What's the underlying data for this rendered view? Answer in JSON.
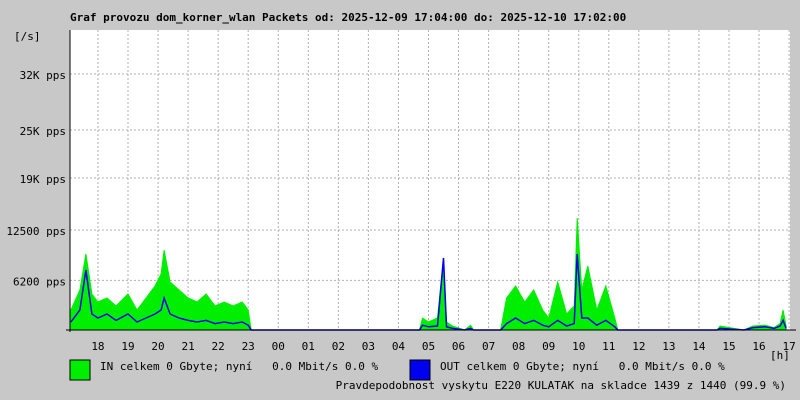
{
  "chart_data": {
    "type": "area-line",
    "title": "Graf provozu dom_korner_wlan Packets od: 2025-12-09 17:04:00 do: 2025-12-10 17:02:00",
    "y_unit": "[/s]",
    "x_unit": "[h]",
    "x": [
      17.1,
      17.4,
      17.6,
      17.8,
      18.0,
      18.3,
      18.6,
      19.0,
      19.3,
      19.6,
      19.9,
      20.1,
      20.2,
      20.4,
      20.7,
      21.0,
      21.3,
      21.6,
      21.9,
      22.2,
      22.5,
      22.8,
      23.0,
      23.1,
      25.0,
      28.7,
      28.8,
      29.0,
      29.3,
      29.5,
      29.6,
      29.8,
      30.2,
      30.4,
      30.5,
      31.4,
      31.6,
      31.9,
      32.2,
      32.5,
      32.8,
      33.0,
      33.3,
      33.6,
      33.85,
      33.95,
      34.1,
      34.3,
      34.6,
      34.9,
      35.2,
      35.3,
      37.0,
      38.6,
      38.7,
      39.5,
      39.8,
      40.2,
      40.5,
      40.7,
      40.8,
      40.9
    ],
    "series": [
      {
        "name": "IN celkem 0 Gbyte; nyní   0.0 Mbit/s 0.0 %",
        "color": "#00ee00",
        "style": "area",
        "values": [
          2500,
          5000,
          9500,
          4500,
          3500,
          4000,
          3000,
          4500,
          2500,
          4000,
          5500,
          7000,
          10000,
          6000,
          5000,
          4000,
          3500,
          4500,
          3000,
          3500,
          3000,
          3500,
          2500,
          0,
          0,
          0,
          1500,
          1000,
          1500,
          9000,
          1000,
          500,
          0,
          600,
          0,
          0,
          4000,
          5500,
          3500,
          5000,
          2500,
          1500,
          6000,
          2000,
          3000,
          14000,
          5000,
          8000,
          2500,
          5500,
          1500,
          0,
          0,
          0,
          500,
          0,
          500,
          600,
          300,
          800,
          2500,
          500
        ]
      },
      {
        "name": "OUT celkem 0 Gbyte; nyní   0.0 Mbit/s 0.0 %",
        "color": "#0000ee",
        "style": "line",
        "values": [
          1000,
          2500,
          7500,
          2000,
          1500,
          2000,
          1200,
          2000,
          1000,
          1500,
          2000,
          2500,
          4000,
          2000,
          1500,
          1200,
          1000,
          1200,
          800,
          1000,
          800,
          1000,
          600,
          0,
          0,
          0,
          600,
          400,
          500,
          9000,
          400,
          200,
          0,
          200,
          0,
          0,
          800,
          1500,
          800,
          1200,
          600,
          400,
          1200,
          500,
          800,
          9500,
          1500,
          1500,
          600,
          1200,
          400,
          0,
          0,
          0,
          200,
          0,
          300,
          400,
          200,
          500,
          1200,
          200
        ]
      }
    ],
    "xlim": [
      17.07,
      41.03
    ],
    "xticks": [
      18,
      19,
      20,
      21,
      22,
      23,
      {
        "value": 24,
        "label": "00"
      },
      {
        "value": 25,
        "label": "01"
      },
      {
        "value": 26,
        "label": "02"
      },
      {
        "value": 27,
        "label": "03"
      },
      {
        "value": 28,
        "label": "04"
      },
      {
        "value": 29,
        "label": "05"
      },
      {
        "value": 30,
        "label": "06"
      },
      {
        "value": 31,
        "label": "07"
      },
      {
        "value": 32,
        "label": "08"
      },
      {
        "value": 33,
        "label": "09"
      },
      {
        "value": 34,
        "label": "10"
      },
      {
        "value": 35,
        "label": "11"
      },
      {
        "value": 36,
        "label": "12"
      },
      {
        "value": 37,
        "label": "13"
      },
      {
        "value": 38,
        "label": "14"
      },
      {
        "value": 39,
        "label": "15"
      },
      {
        "value": 40,
        "label": "16"
      },
      {
        "value": 41,
        "label": "17"
      }
    ],
    "ylim": [
      0,
      37500
    ],
    "yticks": [
      {
        "value": 6200,
        "label": "6200 pps"
      },
      {
        "value": 12500,
        "label": "12500 pps"
      },
      {
        "value": 19000,
        "label": "19K pps"
      },
      {
        "value": 25000,
        "label": "25K pps"
      },
      {
        "value": 32000,
        "label": "32K pps"
      }
    ],
    "grid": true,
    "footnote": "Pravdepodobnost vyskytu E220 KULATAK na skladce 1439 z 1440 (99.9 %)",
    "footnote_color": "#ee0000"
  }
}
